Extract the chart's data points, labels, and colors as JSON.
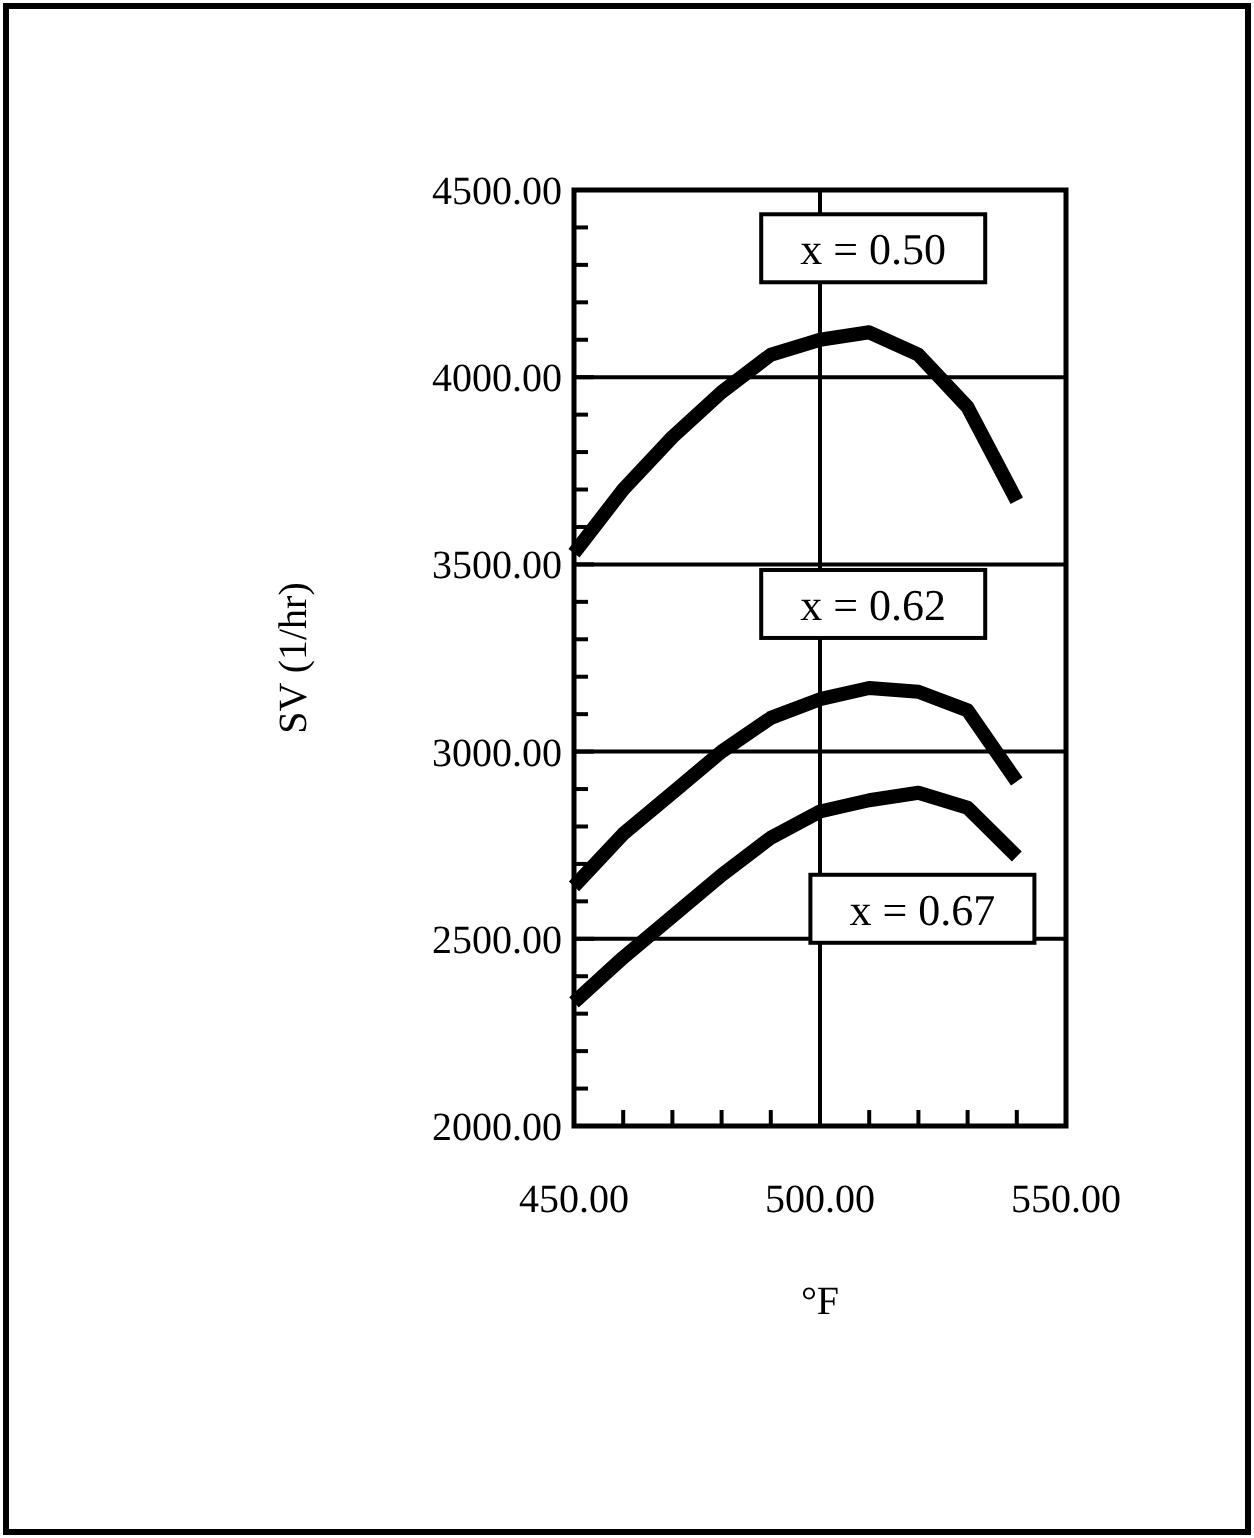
{
  "chart_data": {
    "type": "line",
    "xlabel": "°F",
    "ylabel": "SV (1/hr)",
    "x": [
      450,
      460,
      470,
      480,
      490,
      500,
      510,
      520,
      530,
      540
    ],
    "series": [
      {
        "name": "x = 0.50",
        "color": "#000000",
        "values": [
          3530,
          3700,
          3840,
          3960,
          4060,
          4100,
          4120,
          4060,
          3920,
          3670
        ]
      },
      {
        "name": "x = 0.62",
        "color": "#000000",
        "values": [
          2640,
          2780,
          2890,
          3000,
          3090,
          3140,
          3170,
          3160,
          3110,
          2920
        ]
      },
      {
        "name": "x = 0.67",
        "color": "#000000",
        "values": [
          2330,
          2450,
          2560,
          2670,
          2770,
          2840,
          2870,
          2890,
          2850,
          2720
        ]
      }
    ],
    "xlim": [
      450,
      550
    ],
    "xticks": [
      {
        "value": 450,
        "label": "450.00"
      },
      {
        "value": 460,
        "label": null
      },
      {
        "value": 470,
        "label": null
      },
      {
        "value": 480,
        "label": null
      },
      {
        "value": 490,
        "label": null
      },
      {
        "value": 500,
        "label": "500.00"
      },
      {
        "value": 510,
        "label": null
      },
      {
        "value": 520,
        "label": null
      },
      {
        "value": 530,
        "label": null
      },
      {
        "value": 540,
        "label": null
      },
      {
        "value": 550,
        "label": "550.00"
      }
    ],
    "ylim": [
      2000,
      4500
    ],
    "yticks": [
      {
        "value": 2000,
        "label": "2000.00"
      },
      {
        "value": 2100,
        "label": null
      },
      {
        "value": 2200,
        "label": null
      },
      {
        "value": 2300,
        "label": null
      },
      {
        "value": 2400,
        "label": null
      },
      {
        "value": 2500,
        "label": "2500.00"
      },
      {
        "value": 2600,
        "label": null
      },
      {
        "value": 2700,
        "label": null
      },
      {
        "value": 2800,
        "label": null
      },
      {
        "value": 2900,
        "label": null
      },
      {
        "value": 3000,
        "label": "3000.00"
      },
      {
        "value": 3100,
        "label": null
      },
      {
        "value": 3200,
        "label": null
      },
      {
        "value": 3300,
        "label": null
      },
      {
        "value": 3400,
        "label": null
      },
      {
        "value": 3500,
        "label": "3500.00"
      },
      {
        "value": 3600,
        "label": null
      },
      {
        "value": 3700,
        "label": null
      },
      {
        "value": 3800,
        "label": null
      },
      {
        "value": 3900,
        "label": null
      },
      {
        "value": 4000,
        "label": "4000.00"
      },
      {
        "value": 4100,
        "label": null
      },
      {
        "value": 4200,
        "label": null
      },
      {
        "value": 4300,
        "label": null
      },
      {
        "value": 4400,
        "label": null
      },
      {
        "value": 4500,
        "label": "4500.00"
      }
    ],
    "grid": true,
    "legend": false,
    "marker": "none",
    "line_style": "solid"
  }
}
